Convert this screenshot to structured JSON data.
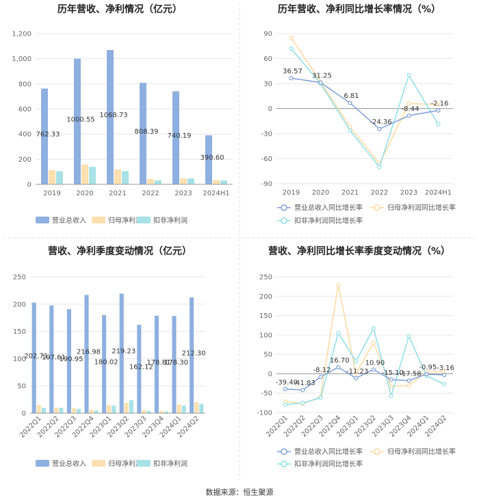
{
  "source": "数据来源：恒生聚源",
  "colors": {
    "revenue": "#8eb0e0",
    "netprofit": "#fde0b0",
    "deducted": "#a8e2e6",
    "rev_line": "#7d9fd8",
    "np_line": "#fdd9a0",
    "ded_line": "#8fdfe6",
    "grid": "#e6e6e6",
    "axis": "#999999"
  },
  "chart_data": [
    {
      "type": "bar",
      "title": "历年营收、净利情况（亿元）",
      "categories": [
        "2019",
        "2020",
        "2021",
        "2022",
        "2023",
        "2024H1"
      ],
      "ylim": [
        0,
        1200
      ],
      "yticks": [
        "0",
        "200",
        "400",
        "600",
        "800",
        "1,000",
        "1,200"
      ],
      "series": [
        {
          "name": "营业总收入",
          "values": [
            762.33,
            1000.55,
            1068.73,
            808.39,
            740.19,
            390.6
          ],
          "labels": [
            "762.33",
            "1000.55",
            "1068.73",
            "808.39",
            "740.19",
            "390.60"
          ]
        },
        {
          "name": "归母净利润",
          "values": [
            113,
            158,
            118,
            43,
            48,
            34
          ]
        },
        {
          "name": "扣非净利润",
          "values": [
            105,
            140,
            105,
            32,
            47,
            31
          ]
        }
      ]
    },
    {
      "type": "line",
      "title": "历年营收、净利同比增长率情况（%）",
      "categories": [
        "2019",
        "2020",
        "2021",
        "2022",
        "2023",
        "2024H1"
      ],
      "ylim": [
        -90,
        90
      ],
      "yticks": [
        "-90",
        "-60",
        "-30",
        "0",
        "30",
        "60",
        "90"
      ],
      "series": [
        {
          "name": "营业总收入同比增长率",
          "values": [
            36.57,
            31.25,
            6.81,
            -24.36,
            -8.44,
            -2.16
          ],
          "labels": [
            "36.57",
            "31.25",
            "6.81",
            "-24.36",
            "-8.44",
            "-2.16"
          ]
        },
        {
          "name": "归母净利润同比增长率",
          "values": [
            85,
            32,
            -22,
            -66,
            6,
            5
          ]
        },
        {
          "name": "扣非净利润同比增长率",
          "values": [
            72,
            30,
            -26,
            -70,
            40,
            -19
          ]
        }
      ]
    },
    {
      "type": "bar",
      "title": "营收、净利季度变动情况（亿元）",
      "categories": [
        "2022Q1",
        "2022Q2",
        "2022Q3",
        "2022Q4",
        "2023Q1",
        "2023Q2",
        "2023Q3",
        "2023Q4",
        "2024Q1",
        "2024Q2"
      ],
      "ylim": [
        0,
        250
      ],
      "yticks": [
        "0",
        "50",
        "100",
        "150",
        "200",
        "250"
      ],
      "series": [
        {
          "name": "营业总收入",
          "values": [
            202.71,
            197.61,
            190.95,
            216.98,
            180.02,
            219.23,
            162.12,
            178.81,
            178.3,
            212.3
          ],
          "labels": [
            "202.71",
            "197.61",
            "190.95",
            "216.98",
            "180.02",
            "219.23",
            "162.12",
            "178.81",
            "178.30",
            "212.30"
          ]
        },
        {
          "name": "归母净利润",
          "values": [
            15,
            10,
            9,
            7,
            15,
            19,
            6,
            4,
            16,
            20
          ]
        },
        {
          "name": "扣非净利润",
          "values": [
            10,
            10,
            8,
            5,
            14,
            24,
            4,
            3,
            14,
            17
          ]
        }
      ]
    },
    {
      "type": "line",
      "title": "营收、净利同比增长率季度变动情况（%）",
      "categories": [
        "2022Q1",
        "2022Q2",
        "2022Q3",
        "2022Q4",
        "2023Q1",
        "2023Q2",
        "2023Q3",
        "2023Q4",
        "2024Q1",
        "2024Q2"
      ],
      "ylim": [
        -100,
        250
      ],
      "yticks": [
        "-100",
        "-50",
        "0",
        "50",
        "100",
        "150",
        "200",
        "250"
      ],
      "series": [
        {
          "name": "营业总收入同比增长率",
          "values": [
            -39.49,
            -41.83,
            -8.12,
            16.7,
            -11.23,
            10.9,
            -15.1,
            -17.58,
            -0.95,
            -3.16
          ],
          "labels": [
            "-39.49",
            "-41.83",
            "-8.12",
            "16.70",
            "-11.23",
            "10.90",
            "-15.10",
            "-17.58",
            "-0.95",
            "-3.16"
          ]
        },
        {
          "name": "归母净利润同比增长率",
          "values": [
            -72,
            -77,
            -60,
            230,
            1,
            80,
            -33,
            -30,
            5,
            6
          ]
        },
        {
          "name": "扣非净利润同比增长率",
          "values": [
            -80,
            -75,
            -62,
            105,
            32,
            117,
            -57,
            97,
            -5,
            -27
          ]
        }
      ]
    }
  ]
}
